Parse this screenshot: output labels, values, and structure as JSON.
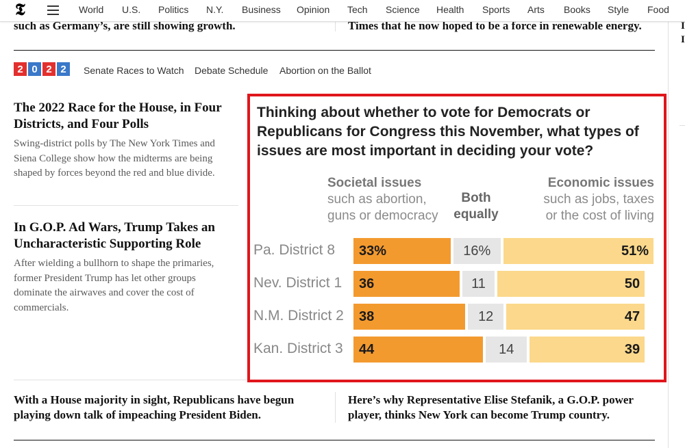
{
  "nav": {
    "logo": "𝕿",
    "items": [
      "World",
      "U.S.",
      "Politics",
      "N.Y.",
      "Business",
      "Opinion",
      "Tech",
      "Science",
      "Health",
      "Sports",
      "Arts",
      "Books",
      "Style",
      "Food"
    ]
  },
  "cut_top": {
    "left": "such as Germany’s, are still showing growth.",
    "right": "Times that he now hoped to be a force in renewable energy."
  },
  "election_bar": {
    "digits": [
      "2",
      "0",
      "2",
      "2"
    ],
    "digit_colors": [
      "#e2302e",
      "#3a78c9",
      "#e2302e",
      "#3a78c9"
    ],
    "links": [
      "Senate Races to Watch",
      "Debate Schedule",
      "Abortion on the Ballot"
    ]
  },
  "stories": [
    {
      "headline": "The 2022 Race for the House, in Four Districts, and Four Polls",
      "summary": "Swing-district polls by The New York Times and Siena College show how the midterms are being shaped by forces beyond the red and blue divide."
    },
    {
      "headline": "In G.O.P. Ad Wars, Trump Takes an Uncharacteristic Supporting Role",
      "summary": "After wielding a bullhorn to shape the primaries, former President Trump has let other groups dominate the airwaves and cover the cost of commercials."
    }
  ],
  "bottom_stories": {
    "left": "With a House majority in sight, Republicans have begun playing down talk of impeaching President Biden.",
    "right": "Here’s why Representative Elise Stefanik, a G.O.P. power player, thinks New York can become Trump country."
  },
  "right_edge": [
    "I",
    "I"
  ],
  "chart_data": {
    "type": "bar",
    "stacked": true,
    "orientation": "horizontal",
    "title": "Thinking about whether to vote for Democrats or Republicans for Congress this November, what types of issues are most important in deciding your vote?",
    "columns": {
      "societal": {
        "name": "Societal issues",
        "sub": "such as abortion, guns or democracy"
      },
      "both": {
        "name": "Both equally"
      },
      "economic": {
        "name": "Economic issues",
        "sub": "such as jobs, taxes or the cost of living"
      }
    },
    "categories": [
      "Pa. District 8",
      "Nev. District 1",
      "N.M. District 2",
      "Kan. District 3"
    ],
    "series": [
      {
        "name": "Societal issues",
        "values": [
          33,
          36,
          38,
          44
        ],
        "color": "#f39a2f"
      },
      {
        "name": "Both equally",
        "values": [
          16,
          11,
          12,
          14
        ],
        "color": "#e6e6e6"
      },
      {
        "name": "Economic issues",
        "values": [
          51,
          50,
          47,
          39
        ],
        "color": "#fbd88b"
      }
    ],
    "labels": [
      [
        "33%",
        "16%",
        "51%"
      ],
      [
        "36",
        "11",
        "50"
      ],
      [
        "38",
        "12",
        "47"
      ],
      [
        "44",
        "14",
        "39"
      ]
    ],
    "highlight_border_color": "#e0161c"
  }
}
